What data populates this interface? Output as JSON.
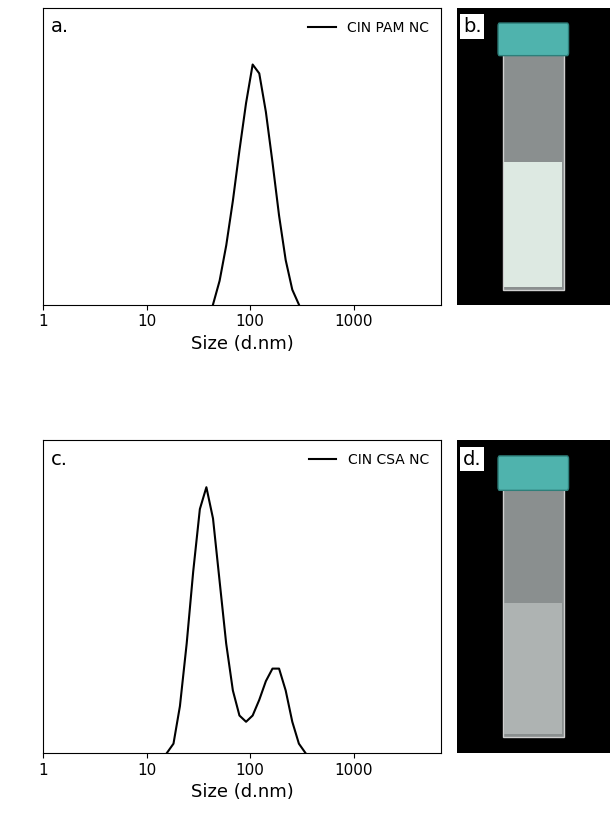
{
  "chart_data": [
    {
      "type": "line",
      "annotations": [
        "a."
      ],
      "x_label": "Size (d.nm)",
      "log": "x",
      "xlim": [
        1,
        7000
      ],
      "xticks": [
        1,
        10,
        100,
        1000
      ],
      "ylim": [
        0,
        100
      ],
      "tick_labels": "x",
      "legend": "upper right",
      "series": [
        {
          "name": "CIN PAM NC",
          "color": "#000000",
          "line_style": "solid",
          "x": [
            43.8,
            50.7,
            58.8,
            68.1,
            78.8,
            91.3,
            105.7,
            122.4,
            141.8,
            164.2,
            190.1,
            220.2,
            255.0,
            295.3
          ],
          "values": [
            0,
            8,
            20,
            35,
            52,
            68,
            81,
            78,
            65,
            48,
            30,
            15,
            5,
            0
          ]
        }
      ]
    },
    {
      "type": "line",
      "annotations": [
        "c."
      ],
      "x_label": "Size (d.nm)",
      "log": "x",
      "xlim": [
        1,
        7000
      ],
      "xticks": [
        1,
        10,
        100,
        1000
      ],
      "ylim": [
        0,
        100
      ],
      "tick_labels": "x",
      "legend": "upper right",
      "series": [
        {
          "name": "CIN CSA NC",
          "color": "#000000",
          "line_style": "solid",
          "x": [
            15.7,
            18.2,
            21.0,
            24.4,
            28.2,
            32.7,
            37.8,
            43.8,
            50.7,
            58.7,
            68.1,
            78.8,
            91.3,
            105.7,
            122.4,
            141.8,
            164.2,
            190.1,
            220.2,
            255.0,
            295.3,
            342.0
          ],
          "values": [
            0,
            3,
            15,
            35,
            58,
            78,
            85,
            75,
            55,
            35,
            20,
            12,
            10,
            12,
            17,
            23,
            27,
            27,
            20,
            10,
            3,
            0
          ]
        }
      ]
    }
  ],
  "images": [
    {
      "label": "b."
    },
    {
      "label": "d."
    }
  ]
}
